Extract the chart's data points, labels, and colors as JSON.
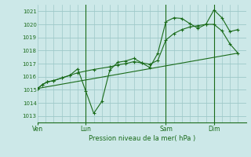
{
  "bg_color": "#cce8e8",
  "grid_color": "#9dc8c8",
  "line_color": "#1a6b1a",
  "title": "Pression niveau de la mer( hPa )",
  "ylim": [
    1012.5,
    1021.5
  ],
  "yticks": [
    1013,
    1014,
    1015,
    1016,
    1017,
    1018,
    1019,
    1020,
    1021
  ],
  "xtick_labels": [
    "Ven",
    "Lun",
    "Sam",
    "Dim"
  ],
  "xtick_positions": [
    0,
    3,
    8,
    11
  ],
  "xlim": [
    0,
    13
  ],
  "vlines_x": [
    3,
    8,
    11
  ],
  "series1_x": [
    0,
    0.3,
    0.6,
    1.0,
    1.5,
    2.0,
    2.5,
    3.0,
    3.5,
    4.0,
    4.5,
    5.0,
    5.5,
    6.0,
    6.5,
    7.0,
    7.5,
    8.0,
    8.5,
    9.0,
    9.5,
    10.0,
    10.5,
    11.0,
    11.5,
    12.0,
    12.5
  ],
  "series1_y": [
    1015.1,
    1015.4,
    1015.6,
    1015.7,
    1015.9,
    1016.1,
    1016.6,
    1014.9,
    1013.2,
    1014.1,
    1016.5,
    1017.1,
    1017.2,
    1017.4,
    1017.05,
    1016.7,
    1017.8,
    1020.2,
    1020.5,
    1020.45,
    1020.05,
    1019.7,
    1020.0,
    1021.1,
    1020.5,
    1019.45,
    1019.6
  ],
  "series2_x": [
    0,
    0.3,
    0.6,
    1.0,
    1.5,
    2.0,
    2.5,
    3.5,
    4.5,
    5.0,
    5.5,
    6.0,
    6.5,
    7.0,
    7.5,
    8.0,
    8.5,
    9.0,
    9.5,
    10.0,
    10.5,
    11.0,
    11.5,
    12.0,
    12.5
  ],
  "series2_y": [
    1015.1,
    1015.4,
    1015.6,
    1015.7,
    1015.9,
    1016.1,
    1016.3,
    1016.55,
    1016.75,
    1016.9,
    1017.0,
    1017.15,
    1017.05,
    1016.95,
    1017.25,
    1018.8,
    1019.3,
    1019.6,
    1019.8,
    1019.9,
    1020.0,
    1020.0,
    1019.5,
    1018.5,
    1017.8
  ],
  "series3_x": [
    0,
    12.5
  ],
  "series3_y": [
    1015.1,
    1017.8
  ]
}
